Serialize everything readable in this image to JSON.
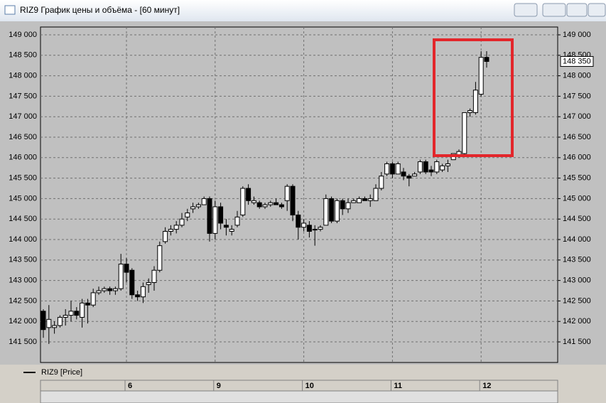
{
  "window_title": "RIZ9 График цены и объёма - [60 минут]",
  "chart_data": {
    "type": "candlestick",
    "categories": [
      null,
      null,
      null,
      null,
      null,
      null,
      null,
      null,
      null,
      null,
      null,
      null,
      null,
      null,
      null,
      "6",
      null,
      null,
      null,
      null,
      null,
      null,
      null,
      null,
      null,
      null,
      null,
      null,
      null,
      null,
      null,
      "9",
      null,
      null,
      null,
      null,
      null,
      null,
      null,
      null,
      null,
      null,
      null,
      null,
      null,
      null,
      null,
      "10",
      null,
      null,
      null,
      null,
      null,
      null,
      null,
      null,
      null,
      null,
      null,
      null,
      null,
      null,
      null,
      "11",
      null,
      null,
      null,
      null,
      null,
      null,
      null,
      null,
      null,
      null,
      null,
      null,
      null,
      null,
      null,
      "12",
      null
    ],
    "series": [
      {
        "name": "RIZ9 [Price]",
        "color": "#000000",
        "open": [
          142250,
          141850,
          141850,
          141900,
          142100,
          142150,
          142250,
          142100,
          142450,
          142400,
          142700,
          142750,
          142800,
          142750,
          142800,
          143400,
          143250,
          142650,
          142600,
          142900,
          142950,
          143250,
          143950,
          144200,
          144250,
          144350,
          144550,
          144750,
          144800,
          144850,
          145000,
          144150,
          144800,
          144350,
          144200,
          144350,
          144600,
          145250,
          144900,
          144900,
          144800,
          144850,
          144900,
          144850,
          144950,
          145300,
          144600,
          144300,
          144350,
          144250,
          144250,
          144350,
          145000,
          144450,
          144950,
          144750,
          144900,
          144900,
          145000,
          144950,
          144950,
          145250,
          145600,
          145850,
          145600,
          145650,
          145550,
          145550,
          145650,
          145900,
          145700,
          145650,
          145700,
          145800,
          145950,
          146050,
          146100,
          147100,
          147100,
          147550,
          148450
        ],
        "high": [
          142300,
          142400,
          142000,
          142150,
          142300,
          142500,
          142350,
          142550,
          142550,
          142800,
          142850,
          142850,
          142850,
          142850,
          143650,
          143550,
          143300,
          142750,
          142950,
          143050,
          143350,
          143950,
          144300,
          144350,
          144450,
          144650,
          144750,
          144900,
          144900,
          145050,
          145050,
          144950,
          144900,
          144500,
          144350,
          144700,
          145300,
          145350,
          145050,
          144950,
          144900,
          144950,
          145000,
          144900,
          145350,
          145350,
          144700,
          144500,
          144450,
          144350,
          144350,
          145100,
          145050,
          145000,
          145000,
          145000,
          145000,
          145050,
          145050,
          145100,
          145350,
          145650,
          145900,
          145900,
          145900,
          145750,
          145600,
          145650,
          145950,
          145950,
          145800,
          145950,
          145850,
          145950,
          146100,
          146200,
          147100,
          147200,
          147850,
          148600,
          148600
        ],
        "low": [
          141600,
          141450,
          141700,
          141850,
          141900,
          142000,
          142050,
          141850,
          141950,
          142350,
          142650,
          142700,
          142650,
          142650,
          142750,
          142950,
          142550,
          142500,
          142450,
          142700,
          142750,
          143200,
          143900,
          144100,
          144150,
          144300,
          144450,
          144650,
          144750,
          144850,
          143950,
          144000,
          144250,
          144100,
          144100,
          144300,
          144550,
          144850,
          144850,
          144750,
          144750,
          144800,
          144850,
          144750,
          144700,
          144450,
          144000,
          144200,
          144050,
          143850,
          144200,
          144350,
          144400,
          144400,
          144600,
          144650,
          144900,
          144900,
          144950,
          144800,
          144950,
          145200,
          145550,
          145500,
          145600,
          145450,
          145300,
          145550,
          145600,
          145600,
          145550,
          145600,
          145650,
          145650,
          145950,
          146000,
          146050,
          147000,
          147050,
          147500,
          148200
        ],
        "close": [
          141800,
          142050,
          141900,
          142100,
          142150,
          142250,
          142150,
          142450,
          142400,
          142700,
          142750,
          142800,
          142750,
          142800,
          143400,
          143200,
          142650,
          142600,
          142850,
          142950,
          143250,
          143850,
          144200,
          144250,
          144350,
          144500,
          144650,
          144800,
          144850,
          145000,
          144150,
          144800,
          144400,
          144300,
          144250,
          144550,
          145250,
          144950,
          144950,
          144800,
          144850,
          144900,
          144850,
          144800,
          145300,
          144600,
          144300,
          144400,
          144200,
          144250,
          144300,
          145000,
          144450,
          144950,
          144750,
          144900,
          144950,
          145000,
          144950,
          145000,
          145250,
          145550,
          145850,
          145600,
          145850,
          145550,
          145500,
          145600,
          145900,
          145650,
          145650,
          145900,
          145800,
          145850,
          146100,
          146150,
          147100,
          147150,
          147650,
          148450,
          148350
        ]
      }
    ],
    "last_label": {
      "value": 148350,
      "label": "148 350"
    },
    "ylim": [
      140997,
      149191
    ],
    "yticks": [
      {
        "value": 141500,
        "label": "141 500"
      },
      {
        "value": 142000,
        "label": "142 000"
      },
      {
        "value": 142500,
        "label": "142 500"
      },
      {
        "value": 143000,
        "label": "143 000"
      },
      {
        "value": 143500,
        "label": "143 500"
      },
      {
        "value": 144000,
        "label": "144 000"
      },
      {
        "value": 144500,
        "label": "144 500"
      },
      {
        "value": 145000,
        "label": "145 000"
      },
      {
        "value": 145500,
        "label": "145 500"
      },
      {
        "value": 146000,
        "label": "146 000"
      },
      {
        "value": 146500,
        "label": "146 500"
      },
      {
        "value": 147000,
        "label": "147 000"
      },
      {
        "value": 147500,
        "label": "147 500"
      },
      {
        "value": 148000,
        "label": "148 000"
      },
      {
        "value": 148500,
        "label": "148 500"
      },
      {
        "value": 149000,
        "label": "149 000"
      }
    ],
    "grid": true
  }
}
